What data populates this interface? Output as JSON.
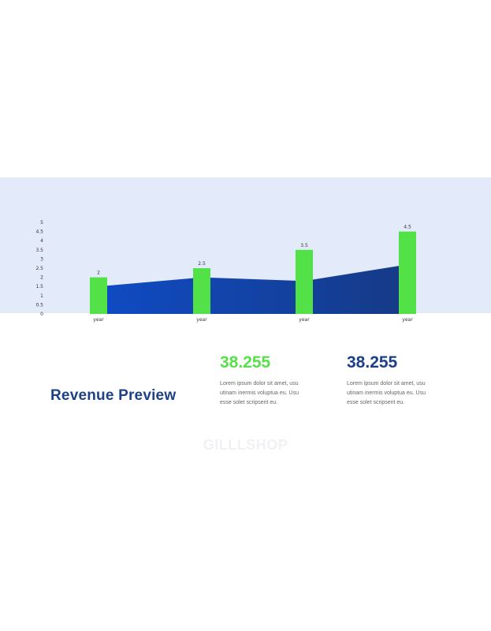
{
  "chart_data": {
    "type": "bar",
    "categories": [
      "year",
      "year",
      "year",
      "year"
    ],
    "series": [
      {
        "type": "bar",
        "values": [
          2,
          2.5,
          3.5,
          4.5
        ],
        "color": "#52e248"
      },
      {
        "type": "area",
        "values": [
          1.5,
          2,
          1.8,
          2.7
        ],
        "color": "#1141b8"
      }
    ],
    "y_ticks": [
      "0",
      "0.5",
      "1",
      "1.5",
      "2",
      "2.5",
      "3",
      "3.5",
      "4",
      "4.5",
      "5"
    ],
    "ylim": [
      0,
      5
    ],
    "data_labels": [
      "2",
      "2.5",
      "3.5",
      "4.5"
    ],
    "background_color": "#e3ebfa"
  },
  "section": {
    "title": "Revenue Preview"
  },
  "stats": [
    {
      "value": "38.255",
      "lines": [
        "Lorem ipsum dolor sit amet, usu",
        "utinam inermis voluptua eu. Usu",
        "esse solet scripserit eu."
      ],
      "color": "#56e04a"
    },
    {
      "value": "38.255",
      "lines": [
        "Lorem ipsum dolor sit amet, usu",
        "utinam inermis voluptua eu. Usu",
        "esse solet scripserit eu."
      ],
      "color": "#1c3f8a"
    }
  ],
  "watermark": "GILLLSHOP"
}
